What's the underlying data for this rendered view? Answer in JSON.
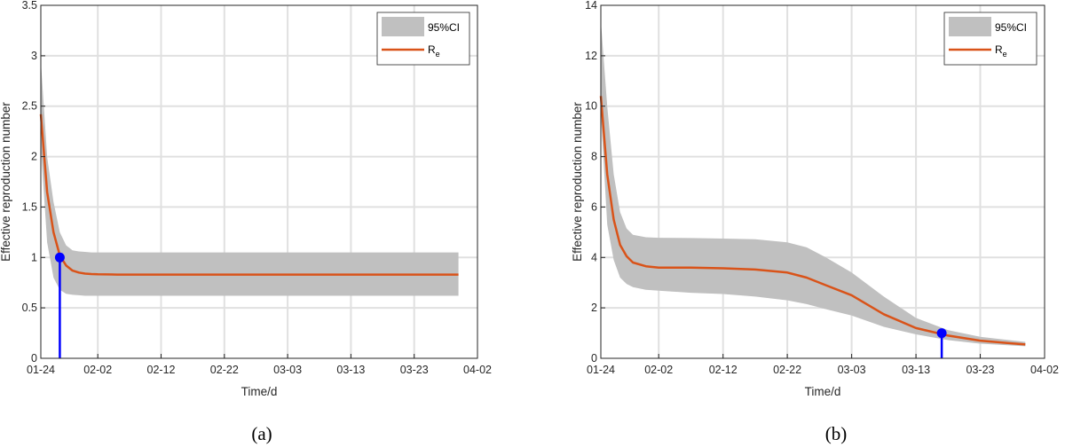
{
  "chart_data": [
    {
      "panel": "a",
      "type": "line",
      "title": "",
      "caption": "(a)",
      "xlabel": "Time/d",
      "ylabel": "Effective reproduction number",
      "ylim": [
        0,
        3.5
      ],
      "yticks": [
        0,
        0.5,
        1,
        1.5,
        2,
        2.5,
        3,
        3.5
      ],
      "ytick_labels": [
        "0",
        "0.5",
        "1",
        "1.5",
        "2",
        "2.5",
        "3",
        "3.5"
      ],
      "xlim": [
        "01-24",
        "04-02"
      ],
      "xticks": [
        "01-24",
        "02-02",
        "02-12",
        "02-22",
        "03-03",
        "03-13",
        "03-23",
        "04-02"
      ],
      "grid": true,
      "legend_position": "top-right",
      "colors": {
        "line": "#d95319",
        "band": "#c0c0c0",
        "marker": "#0000ff"
      },
      "series": [
        {
          "name": "R_e",
          "legend_label": "R",
          "legend_subscript": "e",
          "x": [
            "01-24",
            "01-25",
            "01-26",
            "01-27",
            "01-28",
            "01-29",
            "01-30",
            "01-31",
            "02-01",
            "02-02",
            "02-05",
            "02-12",
            "02-22",
            "03-03",
            "03-13",
            "03-23",
            "03-30"
          ],
          "y": [
            2.42,
            1.65,
            1.25,
            1.02,
            0.92,
            0.87,
            0.85,
            0.84,
            0.835,
            0.833,
            0.83,
            0.83,
            0.83,
            0.83,
            0.83,
            0.83,
            0.83
          ]
        },
        {
          "name": "95%CI",
          "legend_label": "95%CI",
          "x": [
            "01-24",
            "01-25",
            "01-26",
            "01-27",
            "01-28",
            "01-29",
            "01-30",
            "01-31",
            "02-01",
            "02-02",
            "02-05",
            "02-12",
            "02-22",
            "03-03",
            "03-13",
            "03-23",
            "03-30"
          ],
          "lower": [
            2.1,
            1.15,
            0.8,
            0.68,
            0.64,
            0.63,
            0.625,
            0.62,
            0.62,
            0.62,
            0.62,
            0.62,
            0.62,
            0.62,
            0.62,
            0.62,
            0.62
          ],
          "upper": [
            2.95,
            2.0,
            1.55,
            1.25,
            1.12,
            1.07,
            1.06,
            1.055,
            1.05,
            1.05,
            1.05,
            1.05,
            1.05,
            1.05,
            1.05,
            1.05,
            1.05
          ]
        }
      ],
      "marker": {
        "x": "01-27",
        "y": 1.0
      }
    },
    {
      "panel": "b",
      "type": "line",
      "title": "",
      "caption": "(b)",
      "xlabel": "Time/d",
      "ylabel": "Effective reproduction number",
      "ylim": [
        0,
        14
      ],
      "yticks": [
        0,
        2,
        4,
        6,
        8,
        10,
        12,
        14
      ],
      "ytick_labels": [
        "0",
        "2",
        "4",
        "6",
        "8",
        "10",
        "12",
        "14"
      ],
      "xlim": [
        "01-24",
        "04-02"
      ],
      "xticks": [
        "01-24",
        "02-02",
        "02-12",
        "02-22",
        "03-03",
        "03-13",
        "03-23",
        "04-02"
      ],
      "grid": true,
      "legend_position": "top-right",
      "colors": {
        "line": "#d95319",
        "band": "#c0c0c0",
        "marker": "#0000ff"
      },
      "series": [
        {
          "name": "R_e",
          "legend_label": "R",
          "legend_subscript": "e",
          "x": [
            "01-24",
            "01-25",
            "01-26",
            "01-27",
            "01-28",
            "01-29",
            "01-31",
            "02-02",
            "02-07",
            "02-12",
            "02-17",
            "02-22",
            "02-25",
            "02-28",
            "03-03",
            "03-08",
            "03-13",
            "03-18",
            "03-23",
            "03-30"
          ],
          "y": [
            10.4,
            7.3,
            5.5,
            4.5,
            4.05,
            3.8,
            3.65,
            3.6,
            3.6,
            3.57,
            3.52,
            3.4,
            3.2,
            2.9,
            2.5,
            1.75,
            1.2,
            0.9,
            0.7,
            0.55
          ]
        },
        {
          "name": "95%CI",
          "legend_label": "95%CI",
          "x": [
            "01-24",
            "01-25",
            "01-26",
            "01-27",
            "01-28",
            "01-29",
            "01-31",
            "02-02",
            "02-07",
            "02-12",
            "02-17",
            "02-22",
            "02-25",
            "02-28",
            "03-03",
            "03-08",
            "03-13",
            "03-18",
            "03-23",
            "03-30"
          ],
          "lower": [
            9.7,
            5.3,
            3.9,
            3.2,
            2.95,
            2.82,
            2.72,
            2.68,
            2.6,
            2.55,
            2.45,
            2.3,
            2.15,
            1.95,
            1.7,
            1.25,
            0.95,
            0.72,
            0.58,
            0.48
          ],
          "upper": [
            13.4,
            10.0,
            7.3,
            5.8,
            5.15,
            4.9,
            4.8,
            4.78,
            4.77,
            4.75,
            4.72,
            4.6,
            4.4,
            4.0,
            3.4,
            2.45,
            1.6,
            1.12,
            0.85,
            0.65
          ]
        }
      ],
      "marker": {
        "x": "03-17",
        "y": 1.0
      }
    }
  ]
}
